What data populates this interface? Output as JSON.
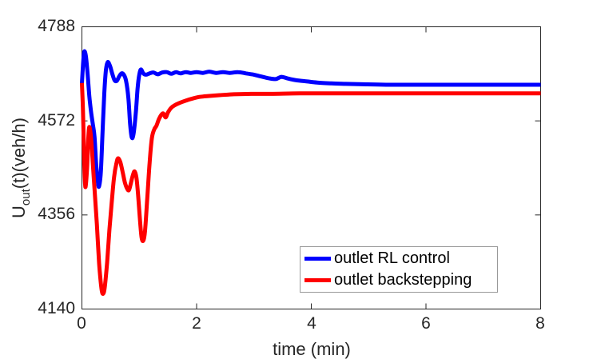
{
  "figure": {
    "background": "#ffffff",
    "axis_color": "#262626",
    "text_color": "#262626"
  },
  "chart_data": {
    "type": "line",
    "title": "",
    "xlabel": "time (min)",
    "ylabel": "U_out(t)(veh/h)",
    "ylabel_parts": {
      "base": "U",
      "sub": "out",
      "rest": "(t)(veh/h)"
    },
    "xlim": [
      0,
      8
    ],
    "ylim": [
      4140,
      4788
    ],
    "xticks": [
      0,
      2,
      4,
      6,
      8
    ],
    "yticks": [
      4140,
      4356,
      4572,
      4788
    ],
    "xtick_labels": [
      "0",
      "2",
      "4",
      "6",
      "8"
    ],
    "ytick_labels": [
      "4140",
      "4356",
      "4572",
      "4788"
    ],
    "grid": false,
    "legend_position": "inside lower right",
    "series": [
      {
        "name": "outlet RL control",
        "color": "#0000ff",
        "width": 5,
        "points": [
          [
            0,
            4658
          ],
          [
            0.02,
            4702
          ],
          [
            0.04,
            4731
          ],
          [
            0.07,
            4720
          ],
          [
            0.1,
            4678
          ],
          [
            0.13,
            4628
          ],
          [
            0.16,
            4592
          ],
          [
            0.19,
            4565
          ],
          [
            0.22,
            4535
          ],
          [
            0.25,
            4470
          ],
          [
            0.28,
            4430
          ],
          [
            0.3,
            4422
          ],
          [
            0.33,
            4455
          ],
          [
            0.36,
            4545
          ],
          [
            0.39,
            4635
          ],
          [
            0.42,
            4690
          ],
          [
            0.45,
            4707
          ],
          [
            0.49,
            4698
          ],
          [
            0.53,
            4680
          ],
          [
            0.57,
            4665
          ],
          [
            0.61,
            4664
          ],
          [
            0.65,
            4674
          ],
          [
            0.69,
            4681
          ],
          [
            0.73,
            4678
          ],
          [
            0.77,
            4664
          ],
          [
            0.81,
            4625
          ],
          [
            0.84,
            4565
          ],
          [
            0.87,
            4534
          ],
          [
            0.9,
            4542
          ],
          [
            0.94,
            4590
          ],
          [
            0.97,
            4645
          ],
          [
            1.0,
            4678
          ],
          [
            1.03,
            4690
          ],
          [
            1.07,
            4681
          ],
          [
            1.12,
            4678
          ],
          [
            1.18,
            4681
          ],
          [
            1.25,
            4683
          ],
          [
            1.32,
            4679
          ],
          [
            1.4,
            4683
          ],
          [
            1.48,
            4684
          ],
          [
            1.56,
            4680
          ],
          [
            1.64,
            4684
          ],
          [
            1.72,
            4681
          ],
          [
            1.81,
            4684
          ],
          [
            1.9,
            4682
          ],
          [
            2.0,
            4684
          ],
          [
            2.11,
            4682
          ],
          [
            2.22,
            4685
          ],
          [
            2.34,
            4682
          ],
          [
            2.46,
            4684
          ],
          [
            2.58,
            4682
          ],
          [
            2.72,
            4684
          ],
          [
            2.86,
            4681
          ],
          [
            3.0,
            4678
          ],
          [
            3.12,
            4674
          ],
          [
            3.25,
            4670
          ],
          [
            3.38,
            4668
          ],
          [
            3.48,
            4673
          ],
          [
            3.6,
            4669
          ],
          [
            3.75,
            4665
          ],
          [
            3.9,
            4663
          ],
          [
            4.1,
            4660
          ],
          [
            4.35,
            4658
          ],
          [
            4.6,
            4657
          ],
          [
            4.9,
            4656
          ],
          [
            5.3,
            4655
          ],
          [
            5.8,
            4655
          ],
          [
            6.4,
            4655
          ],
          [
            7.2,
            4655
          ],
          [
            8,
            4655
          ]
        ]
      },
      {
        "name": "outlet backstepping",
        "color": "#ff0000",
        "width": 5,
        "points": [
          [
            0,
            4659
          ],
          [
            0.02,
            4590
          ],
          [
            0.04,
            4480
          ],
          [
            0.06,
            4420
          ],
          [
            0.09,
            4465
          ],
          [
            0.11,
            4530
          ],
          [
            0.13,
            4558
          ],
          [
            0.16,
            4532
          ],
          [
            0.19,
            4475
          ],
          [
            0.22,
            4415
          ],
          [
            0.26,
            4335
          ],
          [
            0.3,
            4245
          ],
          [
            0.34,
            4188
          ],
          [
            0.37,
            4175
          ],
          [
            0.4,
            4192
          ],
          [
            0.44,
            4248
          ],
          [
            0.48,
            4322
          ],
          [
            0.52,
            4385
          ],
          [
            0.56,
            4442
          ],
          [
            0.6,
            4474
          ],
          [
            0.63,
            4486
          ],
          [
            0.67,
            4477
          ],
          [
            0.71,
            4455
          ],
          [
            0.75,
            4430
          ],
          [
            0.79,
            4416
          ],
          [
            0.82,
            4413
          ],
          [
            0.85,
            4427
          ],
          [
            0.89,
            4448
          ],
          [
            0.92,
            4456
          ],
          [
            0.95,
            4442
          ],
          [
            0.98,
            4402
          ],
          [
            1.01,
            4348
          ],
          [
            1.04,
            4305
          ],
          [
            1.07,
            4297
          ],
          [
            1.1,
            4318
          ],
          [
            1.14,
            4395
          ],
          [
            1.18,
            4475
          ],
          [
            1.22,
            4532
          ],
          [
            1.26,
            4552
          ],
          [
            1.3,
            4561
          ],
          [
            1.34,
            4575
          ],
          [
            1.38,
            4585
          ],
          [
            1.42,
            4589
          ],
          [
            1.46,
            4580
          ],
          [
            1.5,
            4591
          ],
          [
            1.55,
            4601
          ],
          [
            1.62,
            4608
          ],
          [
            1.7,
            4613
          ],
          [
            1.8,
            4618
          ],
          [
            1.92,
            4623
          ],
          [
            2.05,
            4627
          ],
          [
            2.2,
            4629
          ],
          [
            2.4,
            4631
          ],
          [
            2.65,
            4633
          ],
          [
            2.95,
            4634
          ],
          [
            3.3,
            4634
          ],
          [
            3.8,
            4635
          ],
          [
            4.4,
            4635
          ],
          [
            5.2,
            4635
          ],
          [
            6.2,
            4635
          ],
          [
            7.2,
            4635
          ],
          [
            8,
            4635
          ]
        ]
      }
    ]
  }
}
